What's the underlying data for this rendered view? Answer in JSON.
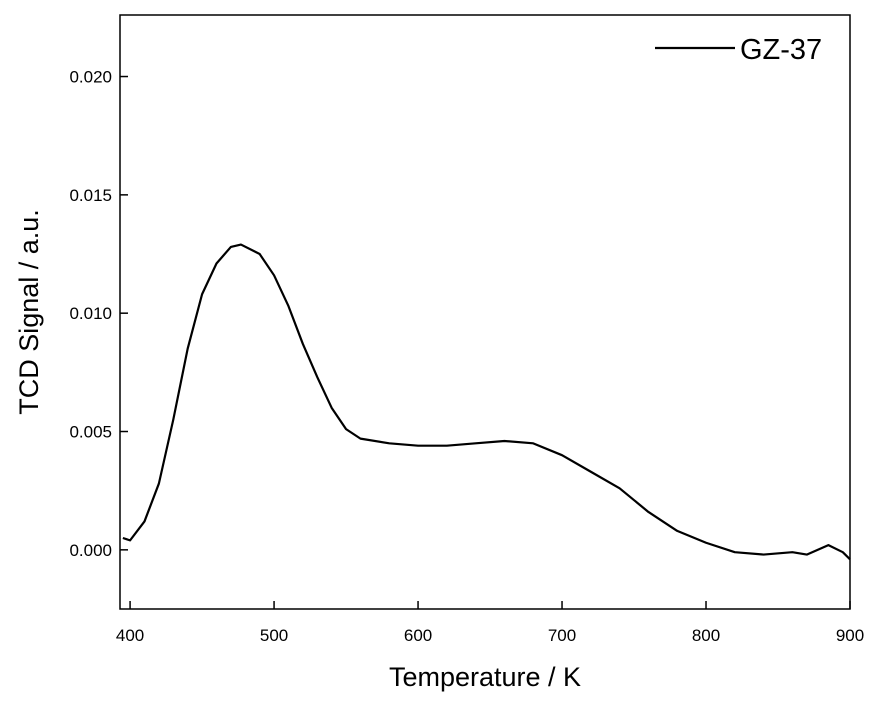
{
  "chart_data": {
    "type": "line",
    "xlabel": "Temperature / K",
    "ylabel": "TCD Signal / a.u.",
    "xlim": [
      393,
      900
    ],
    "ylim": [
      -0.0025,
      0.0226
    ],
    "xticks": [
      400,
      500,
      600,
      700,
      800,
      900
    ],
    "yticks": [
      {
        "value": 0,
        "label": "0.000"
      },
      {
        "value": 0.005,
        "label": "0.005"
      },
      {
        "value": 0.01,
        "label": "0.010"
      },
      {
        "value": 0.015,
        "label": "0.015"
      },
      {
        "value": 0.02,
        "label": "0.020"
      }
    ],
    "legend": "upper right",
    "x": [
      395,
      400,
      410,
      420,
      430,
      440,
      450,
      460,
      470,
      477,
      490,
      500,
      510,
      520,
      530,
      540,
      550,
      560,
      580,
      600,
      620,
      640,
      660,
      680,
      700,
      720,
      740,
      760,
      780,
      800,
      820,
      840,
      860,
      870,
      885,
      895,
      900
    ],
    "series": [
      {
        "name": "GZ-37",
        "color": "#000000",
        "values": [
          0.0005,
          0.0004,
          0.0012,
          0.0028,
          0.0055,
          0.0085,
          0.0108,
          0.0121,
          0.0128,
          0.0129,
          0.0125,
          0.0116,
          0.0103,
          0.0087,
          0.0073,
          0.006,
          0.0051,
          0.0047,
          0.0045,
          0.0044,
          0.0044,
          0.0045,
          0.0046,
          0.0045,
          0.004,
          0.0033,
          0.0026,
          0.0016,
          0.0008,
          0.0003,
          -0.0001,
          -0.0002,
          -0.0001,
          -0.0002,
          0.0002,
          -0.0001,
          -0.0004
        ]
      }
    ]
  }
}
